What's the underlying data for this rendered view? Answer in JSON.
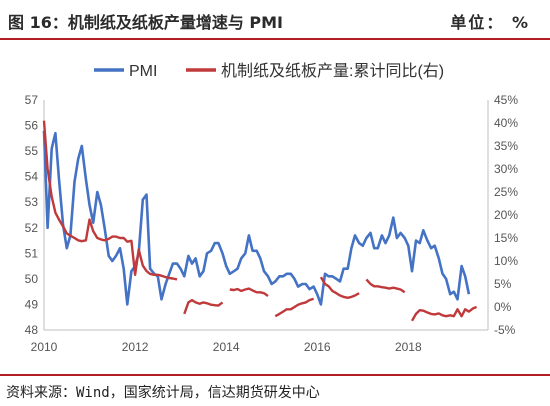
{
  "header": {
    "title": "图 16：机制纸及纸板产量增速与 PMI",
    "unit": "单位：  %"
  },
  "footer": {
    "source": "资料来源：Wind，国家统计局，信达期货研发中心"
  },
  "colors": {
    "pmi": "#4472c4",
    "output": "#c0393b",
    "accent": "#b11e23"
  },
  "chart_data": {
    "type": "line",
    "title": "",
    "legend_position": "top",
    "x_ticks": [
      "2010",
      "2012",
      "2014",
      "2016",
      "2018"
    ],
    "x_range": [
      2010.0,
      2019.75
    ],
    "y_left": {
      "ticks": [
        "57",
        "56",
        "55",
        "54",
        "53",
        "52",
        "51",
        "50",
        "49",
        "48"
      ],
      "range": [
        48,
        57
      ]
    },
    "y_right": {
      "ticks": [
        "45%",
        "40%",
        "35%",
        "30%",
        "25%",
        "20%",
        "15%",
        "10%",
        "5%",
        "0%",
        "-5%"
      ],
      "range": [
        -5,
        45
      ]
    },
    "series": [
      {
        "name": "PMI",
        "axis": "left",
        "points": [
          [
            2010.0,
            55.8
          ],
          [
            2010.08,
            52.0
          ],
          [
            2010.17,
            55.1
          ],
          [
            2010.25,
            55.7
          ],
          [
            2010.33,
            53.9
          ],
          [
            2010.42,
            52.1
          ],
          [
            2010.5,
            51.2
          ],
          [
            2010.58,
            51.7
          ],
          [
            2010.67,
            53.8
          ],
          [
            2010.75,
            54.7
          ],
          [
            2010.83,
            55.2
          ],
          [
            2010.92,
            53.9
          ],
          [
            2011.0,
            52.9
          ],
          [
            2011.08,
            52.2
          ],
          [
            2011.17,
            53.4
          ],
          [
            2011.25,
            52.9
          ],
          [
            2011.33,
            52.0
          ],
          [
            2011.42,
            50.9
          ],
          [
            2011.5,
            50.7
          ],
          [
            2011.58,
            50.9
          ],
          [
            2011.67,
            51.2
          ],
          [
            2011.75,
            50.4
          ],
          [
            2011.83,
            49.0
          ],
          [
            2011.92,
            50.3
          ],
          [
            2012.0,
            50.5
          ],
          [
            2012.08,
            51.0
          ],
          [
            2012.17,
            53.1
          ],
          [
            2012.25,
            53.3
          ],
          [
            2012.33,
            50.4
          ],
          [
            2012.42,
            50.2
          ],
          [
            2012.5,
            50.1
          ],
          [
            2012.58,
            49.2
          ],
          [
            2012.67,
            49.8
          ],
          [
            2012.75,
            50.2
          ],
          [
            2012.83,
            50.6
          ],
          [
            2012.92,
            50.6
          ],
          [
            2013.0,
            50.4
          ],
          [
            2013.08,
            50.1
          ],
          [
            2013.17,
            50.9
          ],
          [
            2013.25,
            50.6
          ],
          [
            2013.33,
            50.8
          ],
          [
            2013.42,
            50.1
          ],
          [
            2013.5,
            50.3
          ],
          [
            2013.58,
            51.0
          ],
          [
            2013.67,
            51.1
          ],
          [
            2013.75,
            51.4
          ],
          [
            2013.83,
            51.4
          ],
          [
            2013.92,
            51.0
          ],
          [
            2014.0,
            50.5
          ],
          [
            2014.08,
            50.2
          ],
          [
            2014.17,
            50.3
          ],
          [
            2014.25,
            50.4
          ],
          [
            2014.33,
            50.8
          ],
          [
            2014.42,
            51.0
          ],
          [
            2014.5,
            51.7
          ],
          [
            2014.58,
            51.1
          ],
          [
            2014.67,
            51.1
          ],
          [
            2014.75,
            50.8
          ],
          [
            2014.83,
            50.3
          ],
          [
            2014.92,
            50.1
          ],
          [
            2015.0,
            49.8
          ],
          [
            2015.08,
            49.9
          ],
          [
            2015.17,
            50.1
          ],
          [
            2015.25,
            50.1
          ],
          [
            2015.33,
            50.2
          ],
          [
            2015.42,
            50.2
          ],
          [
            2015.5,
            50.0
          ],
          [
            2015.58,
            49.7
          ],
          [
            2015.67,
            49.8
          ],
          [
            2015.75,
            49.8
          ],
          [
            2015.83,
            49.6
          ],
          [
            2015.92,
            49.7
          ],
          [
            2016.0,
            49.4
          ],
          [
            2016.08,
            49.0
          ],
          [
            2016.17,
            50.2
          ],
          [
            2016.25,
            50.1
          ],
          [
            2016.33,
            50.1
          ],
          [
            2016.42,
            50.0
          ],
          [
            2016.5,
            49.9
          ],
          [
            2016.58,
            50.4
          ],
          [
            2016.67,
            50.4
          ],
          [
            2016.75,
            51.2
          ],
          [
            2016.83,
            51.7
          ],
          [
            2016.92,
            51.4
          ],
          [
            2017.0,
            51.3
          ],
          [
            2017.08,
            51.6
          ],
          [
            2017.17,
            51.8
          ],
          [
            2017.25,
            51.2
          ],
          [
            2017.33,
            51.2
          ],
          [
            2017.42,
            51.7
          ],
          [
            2017.5,
            51.4
          ],
          [
            2017.58,
            51.7
          ],
          [
            2017.67,
            52.4
          ],
          [
            2017.75,
            51.6
          ],
          [
            2017.83,
            51.8
          ],
          [
            2017.92,
            51.6
          ],
          [
            2018.0,
            51.3
          ],
          [
            2018.08,
            50.3
          ],
          [
            2018.17,
            51.5
          ],
          [
            2018.25,
            51.4
          ],
          [
            2018.33,
            51.9
          ],
          [
            2018.42,
            51.5
          ],
          [
            2018.5,
            51.2
          ],
          [
            2018.58,
            51.3
          ],
          [
            2018.67,
            50.8
          ],
          [
            2018.75,
            50.2
          ],
          [
            2018.83,
            50.0
          ],
          [
            2018.92,
            49.4
          ],
          [
            2019.0,
            49.5
          ],
          [
            2019.08,
            49.2
          ],
          [
            2019.17,
            50.5
          ],
          [
            2019.25,
            50.1
          ],
          [
            2019.33,
            49.4
          ]
        ]
      },
      {
        "name": "机制纸及纸板产量:累计同比(右)",
        "axis": "right",
        "segments": [
          [
            [
              2010.0,
              40.5
            ],
            [
              2010.08,
              30.0
            ],
            [
              2010.17,
              24.0
            ],
            [
              2010.25,
              20.5
            ],
            [
              2010.33,
              19.0
            ],
            [
              2010.42,
              17.5
            ],
            [
              2010.5,
              16.0
            ],
            [
              2010.58,
              15.5
            ],
            [
              2010.67,
              15.0
            ],
            [
              2010.75,
              14.5
            ],
            [
              2010.83,
              14.3
            ],
            [
              2010.92,
              14.5
            ],
            [
              2011.0,
              19.0
            ],
            [
              2011.08,
              16.5
            ],
            [
              2011.17,
              15.0
            ],
            [
              2011.25,
              14.7
            ],
            [
              2011.33,
              14.5
            ],
            [
              2011.42,
              14.8
            ],
            [
              2011.5,
              15.3
            ],
            [
              2011.58,
              15.3
            ],
            [
              2011.67,
              15.0
            ],
            [
              2011.75,
              15.0
            ],
            [
              2011.83,
              14.2
            ],
            [
              2011.92,
              14.4
            ],
            [
              2012.0,
              7.0
            ],
            [
              2012.08,
              12.5
            ],
            [
              2012.17,
              9.0
            ],
            [
              2012.25,
              7.8
            ],
            [
              2012.33,
              7.2
            ],
            [
              2012.42,
              7.0
            ],
            [
              2012.5,
              7.0
            ],
            [
              2012.58,
              6.8
            ],
            [
              2012.67,
              6.5
            ],
            [
              2012.75,
              6.3
            ],
            [
              2012.83,
              6.2
            ],
            [
              2012.92,
              6.0
            ]
          ],
          [
            [
              2013.08,
              -1.5
            ],
            [
              2013.17,
              1.0
            ],
            [
              2013.25,
              1.5
            ],
            [
              2013.33,
              1.0
            ],
            [
              2013.42,
              0.7
            ],
            [
              2013.5,
              1.0
            ],
            [
              2013.58,
              0.8
            ],
            [
              2013.67,
              0.5
            ],
            [
              2013.75,
              0.4
            ],
            [
              2013.83,
              0.3
            ],
            [
              2013.92,
              1.0
            ]
          ],
          [
            [
              2014.08,
              3.8
            ],
            [
              2014.17,
              3.7
            ],
            [
              2014.25,
              3.9
            ],
            [
              2014.33,
              3.5
            ],
            [
              2014.42,
              3.8
            ],
            [
              2014.5,
              4.0
            ],
            [
              2014.58,
              3.6
            ],
            [
              2014.67,
              3.2
            ],
            [
              2014.75,
              3.2
            ],
            [
              2014.83,
              3.0
            ],
            [
              2014.92,
              2.4
            ]
          ],
          [
            [
              2015.08,
              -2.0
            ],
            [
              2015.17,
              -1.5
            ],
            [
              2015.25,
              -1.0
            ],
            [
              2015.33,
              -0.5
            ],
            [
              2015.42,
              -0.5
            ],
            [
              2015.5,
              0.0
            ],
            [
              2015.58,
              0.5
            ],
            [
              2015.67,
              0.8
            ],
            [
              2015.75,
              1.0
            ],
            [
              2015.83,
              1.5
            ],
            [
              2015.92,
              1.8
            ]
          ],
          [
            [
              2016.08,
              6.5
            ],
            [
              2016.17,
              5.0
            ],
            [
              2016.25,
              4.5
            ],
            [
              2016.33,
              3.5
            ],
            [
              2016.42,
              3.0
            ],
            [
              2016.5,
              2.5
            ],
            [
              2016.58,
              2.2
            ],
            [
              2016.67,
              2.0
            ],
            [
              2016.75,
              2.2
            ],
            [
              2016.83,
              2.5
            ],
            [
              2016.92,
              3.0
            ]
          ],
          [
            [
              2017.08,
              6.0
            ],
            [
              2017.17,
              5.0
            ],
            [
              2017.25,
              4.5
            ],
            [
              2017.33,
              4.5
            ],
            [
              2017.42,
              4.3
            ],
            [
              2017.5,
              4.2
            ],
            [
              2017.58,
              4.0
            ],
            [
              2017.67,
              4.2
            ],
            [
              2017.75,
              4.0
            ],
            [
              2017.83,
              3.8
            ],
            [
              2017.92,
              3.2
            ]
          ],
          [
            [
              2018.08,
              -3.0
            ],
            [
              2018.17,
              -1.5
            ],
            [
              2018.25,
              -0.7
            ],
            [
              2018.33,
              -0.8
            ],
            [
              2018.42,
              -1.2
            ],
            [
              2018.5,
              -1.5
            ],
            [
              2018.58,
              -1.6
            ],
            [
              2018.67,
              -1.4
            ],
            [
              2018.75,
              -1.8
            ],
            [
              2018.83,
              -2.0
            ],
            [
              2018.92,
              -1.8
            ],
            [
              2019.0,
              -2.0
            ],
            [
              2019.08,
              -0.5
            ],
            [
              2019.17,
              -2.0
            ],
            [
              2019.25,
              -0.5
            ],
            [
              2019.33,
              -1.0
            ],
            [
              2019.42,
              -0.3
            ],
            [
              2019.5,
              0.0
            ]
          ]
        ]
      }
    ]
  }
}
